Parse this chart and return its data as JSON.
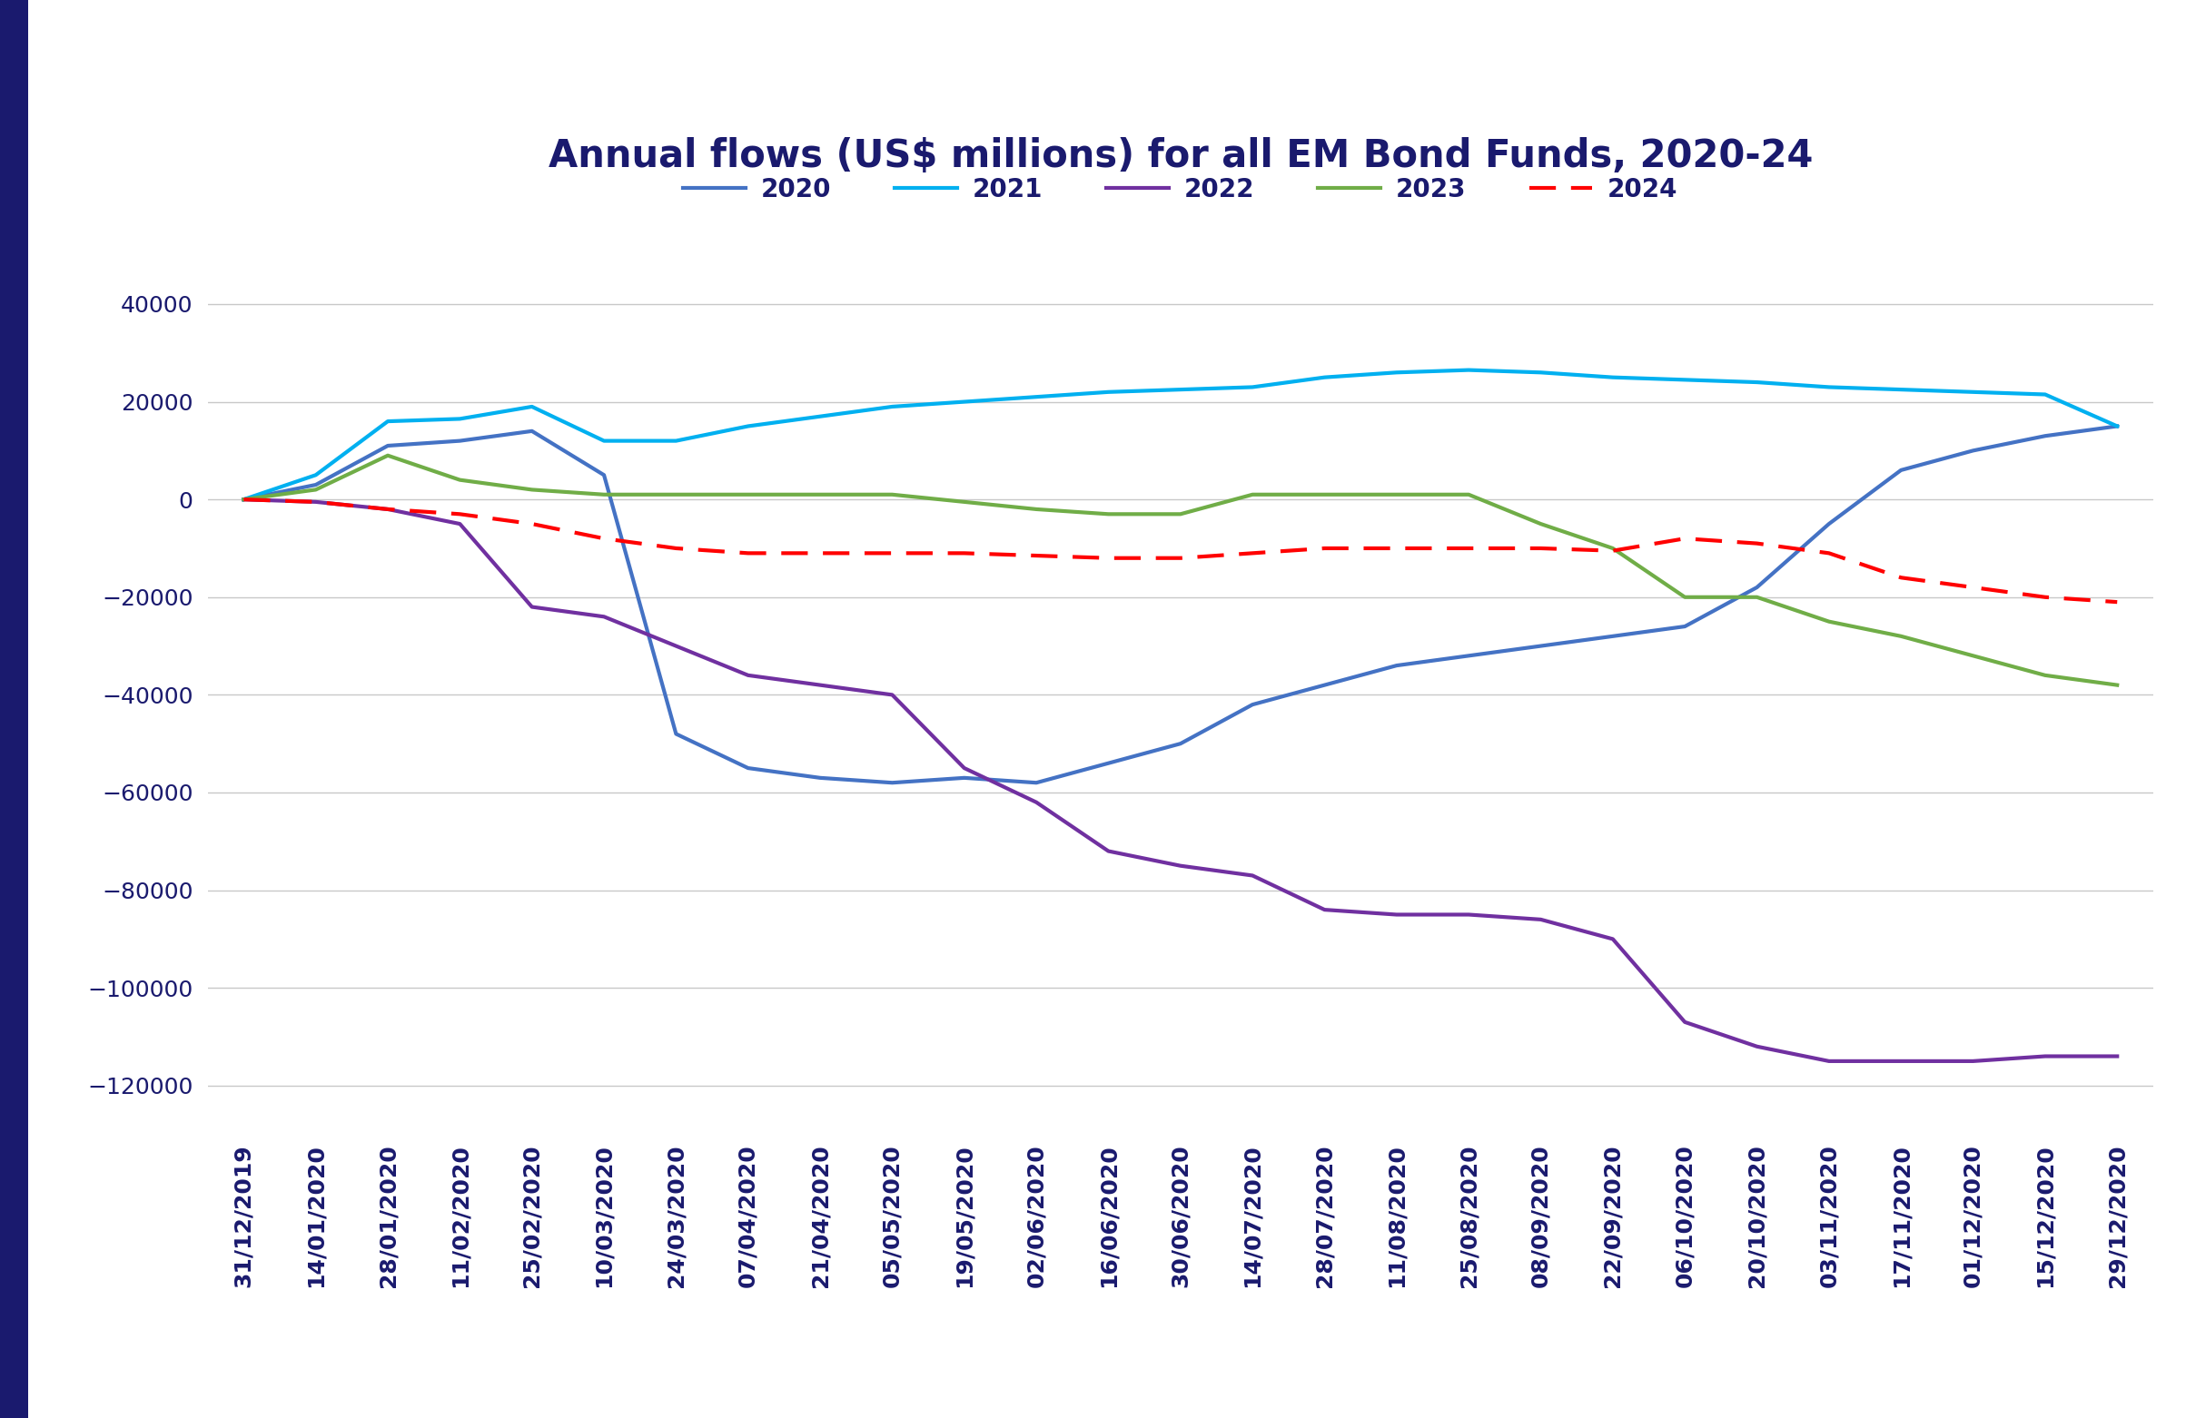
{
  "title": "Annual flows (US$ millions) for all EM Bond Funds, 2020-24",
  "background_color": "#ffffff",
  "title_color": "#1a1a6e",
  "title_fontsize": 30,
  "legend_fontsize": 20,
  "tick_fontsize": 18,
  "x_labels": [
    "31/12/2019",
    "14/01/2020",
    "28/01/2020",
    "11/02/2020",
    "25/02/2020",
    "10/03/2020",
    "24/03/2020",
    "07/04/2020",
    "21/04/2020",
    "05/05/2020",
    "19/05/2020",
    "02/06/2020",
    "16/06/2020",
    "30/06/2020",
    "14/07/2020",
    "28/07/2020",
    "11/08/2020",
    "25/08/2020",
    "08/09/2020",
    "22/09/2020",
    "06/10/2020",
    "20/10/2020",
    "03/11/2020",
    "17/11/2020",
    "01/12/2020",
    "15/12/2020",
    "29/12/2020"
  ],
  "series_2020": [
    0,
    3000,
    11000,
    12000,
    14000,
    5000,
    -48000,
    -55000,
    -57000,
    -58000,
    -57000,
    -58000,
    -54000,
    -50000,
    -42000,
    -38000,
    -34000,
    -32000,
    -30000,
    -28000,
    -26000,
    -18000,
    -5000,
    6000,
    10000,
    13000,
    15000
  ],
  "series_2021": [
    0,
    5000,
    16000,
    16500,
    19000,
    12000,
    12000,
    15000,
    17000,
    19000,
    20000,
    21000,
    22000,
    22500,
    23000,
    25000,
    26000,
    26500,
    26000,
    25000,
    24500,
    24000,
    23000,
    22500,
    22000,
    21500,
    15000
  ],
  "series_2022": [
    0,
    -500,
    -2000,
    -5000,
    -22000,
    -24000,
    -30000,
    -36000,
    -38000,
    -40000,
    -55000,
    -62000,
    -72000,
    -75000,
    -77000,
    -84000,
    -85000,
    -85000,
    -86000,
    -90000,
    -107000,
    -112000,
    -115000,
    -115000,
    -115000,
    -114000,
    -114000
  ],
  "series_2023": [
    0,
    2000,
    9000,
    4000,
    2000,
    1000,
    1000,
    1000,
    1000,
    1000,
    -500,
    -2000,
    -3000,
    -3000,
    1000,
    1000,
    1000,
    1000,
    -5000,
    -10000,
    -20000,
    -20000,
    -25000,
    -28000,
    -32000,
    -36000,
    -38000
  ],
  "series_2024": [
    0,
    -500,
    -2000,
    -3000,
    -5000,
    -8000,
    -10000,
    -11000,
    -11000,
    -11000,
    -11000,
    -11500,
    -12000,
    -12000,
    -11000,
    -10000,
    -10000,
    -10000,
    -10000,
    -10500,
    -8000,
    -9000,
    -11000,
    -16000,
    -18000,
    -20000,
    -21000
  ],
  "color_2020": "#4472c4",
  "color_2021": "#00b0f0",
  "color_2022": "#7030a0",
  "color_2023": "#70ad47",
  "color_2024": "#ff0000",
  "ylim": [
    -130000,
    50000
  ],
  "yticks": [
    40000,
    20000,
    0,
    -20000,
    -40000,
    -60000,
    -80000,
    -100000,
    -120000
  ],
  "grid_color": "#c8c8c8",
  "axis_label_color": "#1a1a6e",
  "sidebar_color": "#1a1a6e",
  "linewidth": 3.0
}
